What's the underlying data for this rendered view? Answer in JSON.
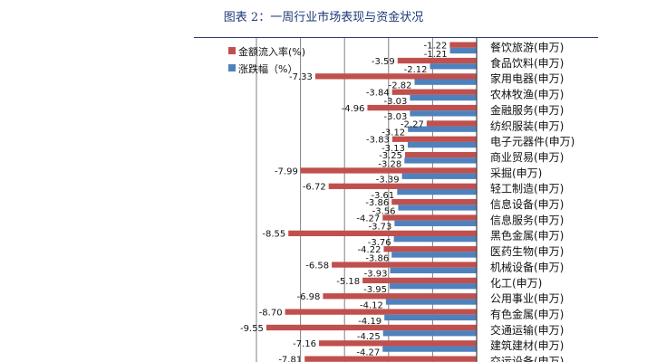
{
  "figure_title": "图表 2：一周行业市场表现与资金状况",
  "chart_data": {
    "type": "bar",
    "orientation": "horizontal",
    "legend_position": "top-left",
    "grid": true,
    "xlim": [
      -10,
      0
    ],
    "categories": [
      "餐饮旅游(申万)",
      "食品饮料(申万)",
      "家用电器(申万)",
      "农林牧渔(申万)",
      "金融服务(申万)",
      "纺织服装(申万)",
      "电子元器件(申万)",
      "商业贸易(申万)",
      "采掘(申万)",
      "轻工制造(申万)",
      "信息设备(申万)",
      "信息服务(申万)",
      "黑色金属(申万)",
      "医药生物(申万)",
      "机械设备(申万)",
      "化工(申万)",
      "公用事业(申万)",
      "有色金属(申万)",
      "交通运输(申万)",
      "建筑建材(申万)",
      "交运设备(申万)"
    ],
    "series": [
      {
        "name": "金额流入率(%)",
        "color": "#c0504d",
        "values": [
          -1.22,
          -3.59,
          -7.33,
          -3.84,
          -4.96,
          -2.27,
          -3.83,
          -3.25,
          -7.99,
          -6.72,
          -3.86,
          -4.27,
          -8.55,
          -4.22,
          -6.58,
          -5.18,
          -6.98,
          -8.7,
          -9.55,
          -7.16,
          -7.81
        ]
      },
      {
        "name": "涨跌幅（%）",
        "color": "#4f81bd",
        "values": [
          -1.21,
          -2.12,
          -2.82,
          -3.03,
          -3.03,
          -3.12,
          -3.13,
          -3.28,
          -3.39,
          -3.61,
          -3.56,
          -3.73,
          -3.76,
          -3.86,
          -3.93,
          -3.95,
          -4.12,
          -4.19,
          -4.25,
          -4.27,
          null
        ]
      }
    ]
  }
}
